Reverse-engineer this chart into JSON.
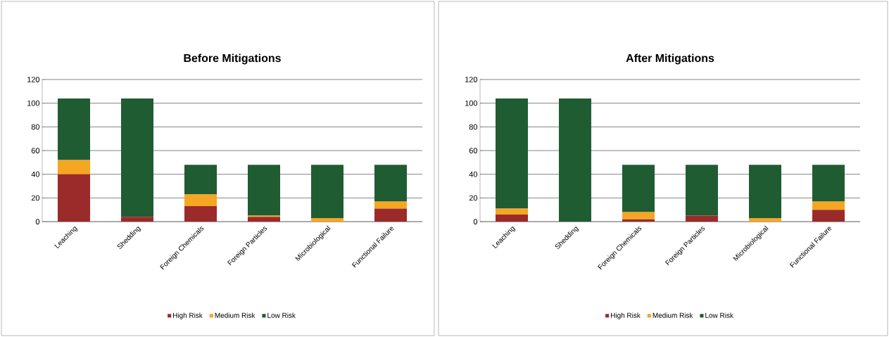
{
  "chart_data": [
    {
      "type": "bar",
      "title": "Before Mitigations",
      "stacked": true,
      "grid": "y",
      "legend": "bottom",
      "categories": [
        "Leaching",
        "Shedding",
        "Foreign Chemicals",
        "Foreign Particles",
        "Microbiological",
        "Functional Failure"
      ],
      "ylim": [
        0,
        120
      ],
      "yticks": [
        0,
        20,
        40,
        60,
        80,
        100,
        120
      ],
      "series": [
        {
          "name": "High Risk",
          "color": "#9b2a2a",
          "values": [
            40,
            4,
            13,
            4,
            0,
            11
          ]
        },
        {
          "name": "Medium Risk",
          "color": "#f5a623",
          "values": [
            12,
            0,
            10,
            1,
            3,
            6
          ]
        },
        {
          "name": "Low Risk",
          "color": "#1f5c32",
          "values": [
            52,
            100,
            25,
            43,
            45,
            31
          ]
        }
      ]
    },
    {
      "type": "bar",
      "title": "After Mitigations",
      "stacked": true,
      "grid": "y",
      "legend": "bottom",
      "categories": [
        "Leaching",
        "Shedding",
        "Foreign Chemicals",
        "Foreign Particles",
        "Microbiological",
        "Functional Failure"
      ],
      "ylim": [
        0,
        120
      ],
      "yticks": [
        0,
        20,
        40,
        60,
        80,
        100,
        120
      ],
      "series": [
        {
          "name": "High Risk",
          "color": "#9b2a2a",
          "values": [
            6,
            0,
            2,
            5,
            0,
            10
          ]
        },
        {
          "name": "Medium Risk",
          "color": "#f5a623",
          "values": [
            5,
            0,
            6,
            0,
            3,
            7
          ]
        },
        {
          "name": "Low Risk",
          "color": "#1f5c32",
          "values": [
            93,
            104,
            40,
            43,
            45,
            31
          ]
        }
      ]
    }
  ]
}
